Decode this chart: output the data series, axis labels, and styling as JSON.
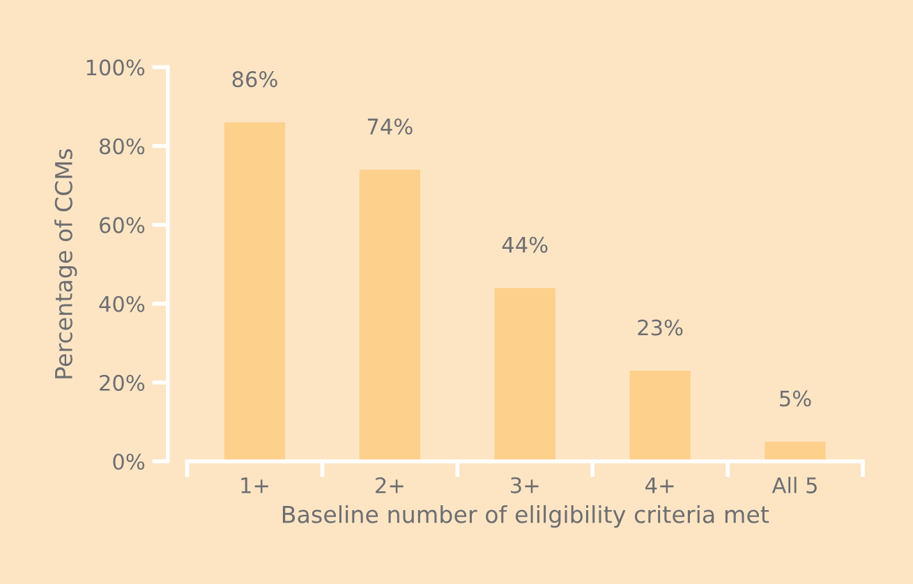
{
  "chart_data": {
    "type": "bar",
    "xlabel": "Baseline number of elilgibility criteria met",
    "ylabel": "Percentage of CCMs",
    "categories": [
      "1+",
      "2+",
      "3+",
      "4+",
      "All 5"
    ],
    "values": [
      86,
      74,
      44,
      23,
      5
    ],
    "value_labels": [
      "86%",
      "74%",
      "44%",
      "23%",
      "5%"
    ],
    "color": "#fdd08c",
    "ylim": [
      0,
      100
    ],
    "yticks": [
      {
        "value": 0,
        "label": "0%"
      },
      {
        "value": 20,
        "label": "20%"
      },
      {
        "value": 40,
        "label": "40%"
      },
      {
        "value": 60,
        "label": "60%"
      },
      {
        "value": 80,
        "label": "80%"
      },
      {
        "value": 100,
        "label": "100%"
      }
    ],
    "grid": false,
    "legend": false
  }
}
